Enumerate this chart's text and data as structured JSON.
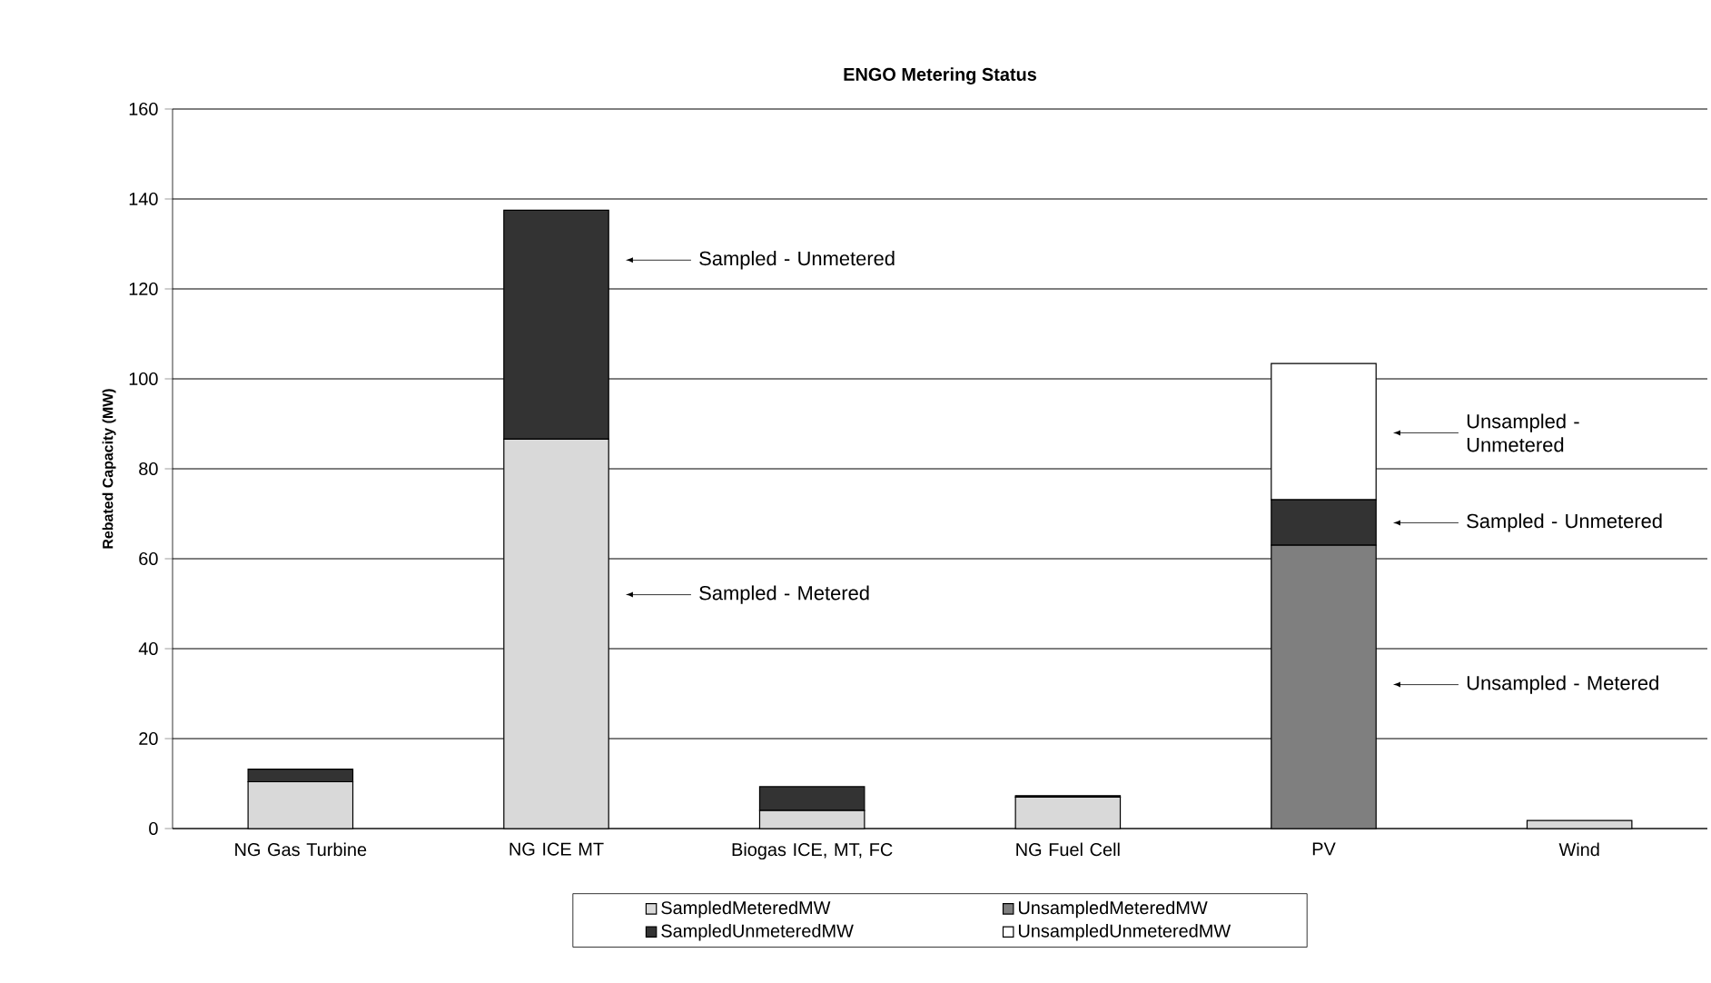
{
  "chart_data": {
    "type": "bar",
    "stacked": true,
    "title": "ENGO Metering Status",
    "ylabel": "Rebated Capacity (MW)",
    "categories": [
      "NG Gas Turbine",
      "NG ICE MT",
      "Biogas ICE, MT, FC",
      "NG Fuel Cell",
      "PV",
      "Wind"
    ],
    "series": [
      {
        "name": "SampledMeteredMW",
        "color": "#d9d9d9",
        "values": [
          10.4,
          86.6,
          4.0,
          7.0,
          0,
          1.8
        ]
      },
      {
        "name": "UnsampledMeteredMW",
        "color": "#7f7f7f",
        "values": [
          0,
          0,
          0,
          0,
          63.0,
          0
        ]
      },
      {
        "name": "SampledUnmeteredMW",
        "color": "#333333",
        "values": [
          2.8,
          50.9,
          5.3,
          0.3,
          10.1,
          0
        ]
      },
      {
        "name": "UnsampledUnmeteredMW",
        "color": "#ffffff",
        "values": [
          0,
          0,
          0,
          0,
          30.3,
          0
        ]
      }
    ],
    "ylim": [
      0,
      160
    ],
    "yticks": [
      0,
      20,
      40,
      60,
      80,
      100,
      120,
      140,
      160
    ],
    "grid": "y",
    "legend": "bottom",
    "annotations": [
      "Sampled - Unmetered",
      "Sampled - Metered",
      "Unsampled - Unmetered",
      "Sampled - Unmetered",
      "Unsampled - Metered"
    ]
  }
}
